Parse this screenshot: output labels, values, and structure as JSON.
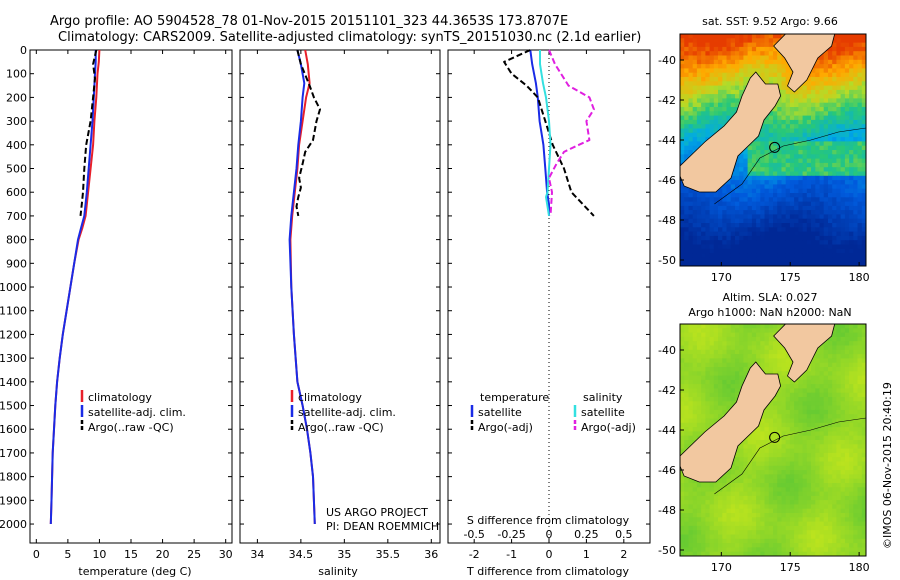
{
  "header": {
    "line1": "Argo profile: AO 5904528_78 01-Nov-2015 20151101_323 44.3653S 173.8707E",
    "line2": "Climatology: CARS2009. Satellite-adjusted climatology: synTS_20151030.nc (2.1d earlier)"
  },
  "credits": {
    "project": "US ARGO PROJECT",
    "pi": "PI: DEAN ROEMMICH",
    "stamp": "©IMOS 06-Nov-2015 20:40:19"
  },
  "colors": {
    "climatology": "#e8202a",
    "satellite": "#1a2be6",
    "argo": "#000000",
    "sat_salinity": "#33e0e0",
    "argo_salinity": "#e020e0",
    "land": "#f2c8a0"
  },
  "chart_data": [
    {
      "type": "line",
      "id": "temperature",
      "xlabel": "temperature (deg C)",
      "xlim": [
        -1,
        31
      ],
      "ylim": [
        0,
        2080
      ],
      "y_reversed": true,
      "xticks": [
        "0",
        "5",
        "10",
        "15",
        "20",
        "25",
        "30"
      ],
      "xtick_values": [
        0,
        5,
        10,
        15,
        20,
        25,
        30
      ],
      "yticks": [
        "0",
        "100",
        "200",
        "300",
        "400",
        "500",
        "600",
        "700",
        "800",
        "900",
        "1000",
        "1100",
        "1200",
        "1300",
        "1400",
        "1500",
        "1600",
        "1700",
        "1800",
        "1900",
        "2000"
      ],
      "ytick_values": [
        0,
        100,
        200,
        300,
        400,
        500,
        600,
        700,
        800,
        900,
        1000,
        1100,
        1200,
        1300,
        1400,
        1500,
        1600,
        1700,
        1800,
        1900,
        2000
      ],
      "legend": [
        "climatology",
        "satellite-adj. clim.",
        "Argo(..raw -QC)"
      ],
      "series": [
        {
          "name": "climatology",
          "style": "solid",
          "x": [
            10,
            9.9,
            9.7,
            9.5,
            9.2,
            9.0,
            8.6,
            8.2,
            7.8,
            7.3,
            6.7,
            6.0,
            5.4,
            4.8,
            4.2,
            3.7,
            3.3,
            3.0,
            2.8,
            2.6,
            2.5,
            2.4,
            2.3
          ],
          "y": [
            0,
            50,
            100,
            200,
            300,
            400,
            500,
            600,
            700,
            750,
            800,
            900,
            1000,
            1100,
            1200,
            1300,
            1400,
            1500,
            1600,
            1700,
            1800,
            1900,
            2000
          ]
        },
        {
          "name": "satellite-adj. clim.",
          "style": "solid",
          "x": [
            9.4,
            9.4,
            9.3,
            9.1,
            8.9,
            8.6,
            8.3,
            8.0,
            7.6,
            7.1,
            6.6,
            6.0,
            5.4,
            4.8,
            4.2,
            3.7,
            3.3,
            3.0,
            2.8,
            2.6,
            2.5,
            2.4,
            2.3
          ],
          "y": [
            0,
            50,
            100,
            200,
            300,
            400,
            500,
            600,
            700,
            750,
            800,
            900,
            1000,
            1100,
            1200,
            1300,
            1400,
            1500,
            1600,
            1700,
            1800,
            1900,
            2000
          ]
        },
        {
          "name": "Argo(..raw -QC)",
          "style": "dashed",
          "x": [
            9.5,
            9.0,
            9.3,
            9.0,
            8.6,
            7.9,
            7.6,
            7.4,
            7.2,
            7.0
          ],
          "y": [
            0,
            60,
            120,
            200,
            300,
            400,
            500,
            600,
            650,
            700
          ]
        }
      ]
    },
    {
      "type": "line",
      "id": "salinity",
      "xlabel": "salinity",
      "xlim": [
        33.8,
        36.1
      ],
      "ylim": [
        0,
        2080
      ],
      "y_reversed": true,
      "xticks": [
        "34",
        "34.5",
        "35",
        "35.5",
        "36"
      ],
      "xtick_values": [
        34,
        34.5,
        35,
        35.5,
        36
      ],
      "legend": [
        "climatology",
        "satellite-adj. clim.",
        "Argo(..raw -QC)"
      ],
      "series": [
        {
          "name": "climatology",
          "style": "solid",
          "x": [
            34.55,
            34.58,
            34.6,
            34.56,
            34.52,
            34.48,
            34.46,
            34.43,
            34.4,
            34.38,
            34.39,
            34.42,
            34.46,
            34.52,
            34.57,
            34.61,
            34.64,
            34.66
          ],
          "y": [
            0,
            60,
            140,
            200,
            300,
            400,
            500,
            600,
            700,
            800,
            1000,
            1200,
            1400,
            1500,
            1600,
            1700,
            1800,
            2000
          ]
        },
        {
          "name": "satellite-adj. clim.",
          "style": "solid",
          "x": [
            34.46,
            34.5,
            34.54,
            34.52,
            34.5,
            34.47,
            34.45,
            34.42,
            34.39,
            34.37,
            34.39,
            34.42,
            34.46,
            34.52,
            34.57,
            34.61,
            34.64,
            34.66
          ],
          "y": [
            0,
            60,
            140,
            200,
            300,
            400,
            500,
            600,
            700,
            800,
            1000,
            1200,
            1400,
            1500,
            1600,
            1700,
            1800,
            2000
          ]
        },
        {
          "name": "Argo(..raw -QC)",
          "style": "dashed",
          "x": [
            34.46,
            34.5,
            34.6,
            34.65,
            34.72,
            34.68,
            34.64,
            34.55,
            34.52,
            34.48,
            34.5,
            34.47,
            34.45,
            34.47
          ],
          "y": [
            0,
            60,
            150,
            200,
            250,
            300,
            380,
            430,
            480,
            540,
            580,
            620,
            660,
            700
          ]
        }
      ]
    },
    {
      "type": "line",
      "id": "difference",
      "xlabel": "T difference from climatology",
      "xlabel_top": "S difference from climatology",
      "xlim": [
        -2.7,
        2.7
      ],
      "ylim": [
        0,
        2080
      ],
      "y_reversed": true,
      "xticks": [
        "-2",
        "-1",
        "0",
        "1",
        "2"
      ],
      "xtick_values": [
        -2,
        -1,
        0,
        1,
        2
      ],
      "sticks": [
        "-0.5",
        "-0.25",
        "0",
        "0.25",
        "0.5"
      ],
      "legend_headers": [
        "temperature",
        "salinity"
      ],
      "legend": [
        "satellite",
        "Argo(-adj)",
        "satellite",
        "Argo(-adj)"
      ],
      "series": [
        {
          "name": "satellite",
          "quantity": "temperature",
          "style": "solid",
          "x": [
            -0.5,
            -0.45,
            -0.35,
            -0.3,
            -0.25,
            -0.15,
            -0.1,
            -0.05,
            0,
            0
          ],
          "y": [
            0,
            60,
            140,
            200,
            300,
            400,
            500,
            600,
            650,
            700
          ]
        },
        {
          "name": "Argo(-adj)",
          "quantity": "temperature",
          "style": "dashed",
          "x": [
            -0.5,
            -1.2,
            -1.0,
            -0.6,
            -0.3,
            -0.1,
            0.1,
            0.4,
            0.6,
            0.9,
            1.2
          ],
          "y": [
            0,
            50,
            100,
            150,
            200,
            300,
            400,
            500,
            600,
            650,
            700
          ]
        },
        {
          "name": "satellite",
          "quantity": "salinity",
          "style": "solid",
          "x": [
            -0.06,
            -0.06,
            -0.04,
            -0.02,
            0,
            0.01,
            0.0,
            -0.01,
            -0.02,
            -0.01,
            0
          ],
          "y": [
            0,
            60,
            140,
            200,
            300,
            400,
            500,
            600,
            620,
            660,
            700
          ]
        },
        {
          "name": "Argo(-adj)",
          "quantity": "salinity",
          "style": "dashed",
          "x": [
            0,
            0.04,
            0.13,
            0.27,
            0.3,
            0.25,
            0.27,
            0.2,
            0.1,
            0.05,
            0.0,
            0.02,
            0.01
          ],
          "y": [
            0,
            60,
            150,
            200,
            250,
            300,
            380,
            400,
            430,
            480,
            540,
            600,
            700
          ]
        }
      ]
    },
    {
      "type": "heatmap",
      "id": "sst_map",
      "title": "sat. SST: 9.52 Argo: 9.66",
      "xlim": [
        167,
        180.5
      ],
      "ylim": [
        -50.3,
        -38.7
      ],
      "xticks": [
        "170",
        "175",
        "180"
      ],
      "xtick_values": [
        170,
        175,
        180
      ],
      "yticks": [
        "-40",
        "-42",
        "-44",
        "-46",
        "-48",
        "-50"
      ],
      "ytick_values": [
        -40,
        -42,
        -44,
        -46,
        -48,
        -50
      ],
      "argo_position": {
        "lon": 173.87,
        "lat": -44.37
      }
    },
    {
      "type": "heatmap",
      "id": "sla_map",
      "title": "Altim. SLA: 0.027",
      "subtitle": "Argo h1000: NaN h2000: NaN",
      "xlim": [
        167,
        180.5
      ],
      "ylim": [
        -50.3,
        -38.7
      ],
      "xticks": [
        "170",
        "175",
        "180"
      ],
      "xtick_values": [
        170,
        175,
        180
      ],
      "yticks": [
        "-40",
        "-42",
        "-44",
        "-46",
        "-48",
        "-50"
      ],
      "ytick_values": [
        -40,
        -42,
        -44,
        -46,
        -48,
        -50
      ],
      "argo_position": {
        "lon": 173.87,
        "lat": -44.37
      }
    }
  ]
}
